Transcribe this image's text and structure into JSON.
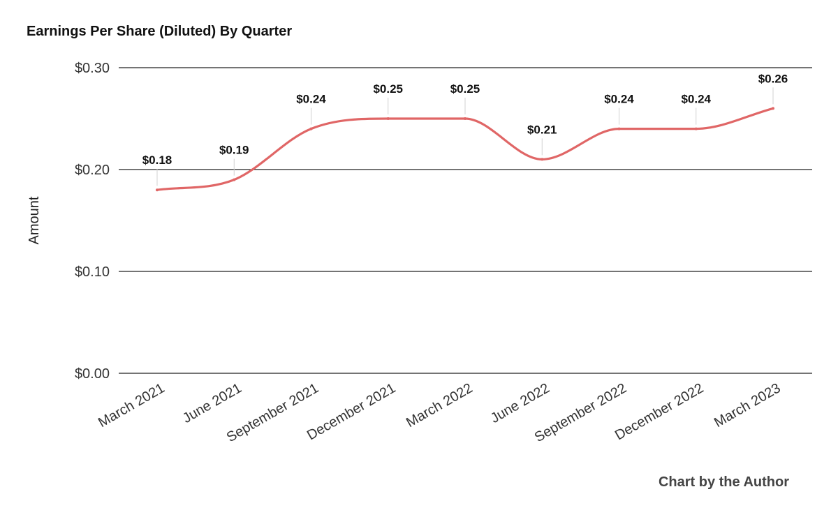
{
  "chart_data": {
    "type": "line",
    "title": "Earnings Per Share (Diluted) By Quarter",
    "ylabel": "Amount",
    "xlabel": "",
    "categories": [
      "March 2021",
      "June 2021",
      "September 2021",
      "December 2021",
      "March 2022",
      "June 2022",
      "September 2022",
      "December 2022",
      "March 2023"
    ],
    "series": [
      {
        "values": [
          0.18,
          0.19,
          0.24,
          0.25,
          0.25,
          0.21,
          0.24,
          0.24,
          0.26
        ],
        "data_labels": [
          "$0.18",
          "$0.19",
          "$0.24",
          "$0.25",
          "$0.25",
          "$0.21",
          "$0.24",
          "$0.24",
          "$0.26"
        ],
        "color": "#e06666"
      }
    ],
    "ylim": [
      0,
      0.3
    ],
    "yticks": [
      0,
      0.1,
      0.2,
      0.3
    ],
    "ytick_labels": [
      "$0.00",
      "$0.10",
      "$0.20",
      "$0.30"
    ],
    "grid": true,
    "smooth": true,
    "legend": "none"
  },
  "credit": "Chart by the Author",
  "colors": {
    "line": "#e06666",
    "grid": "#222222",
    "text": "#333333"
  }
}
